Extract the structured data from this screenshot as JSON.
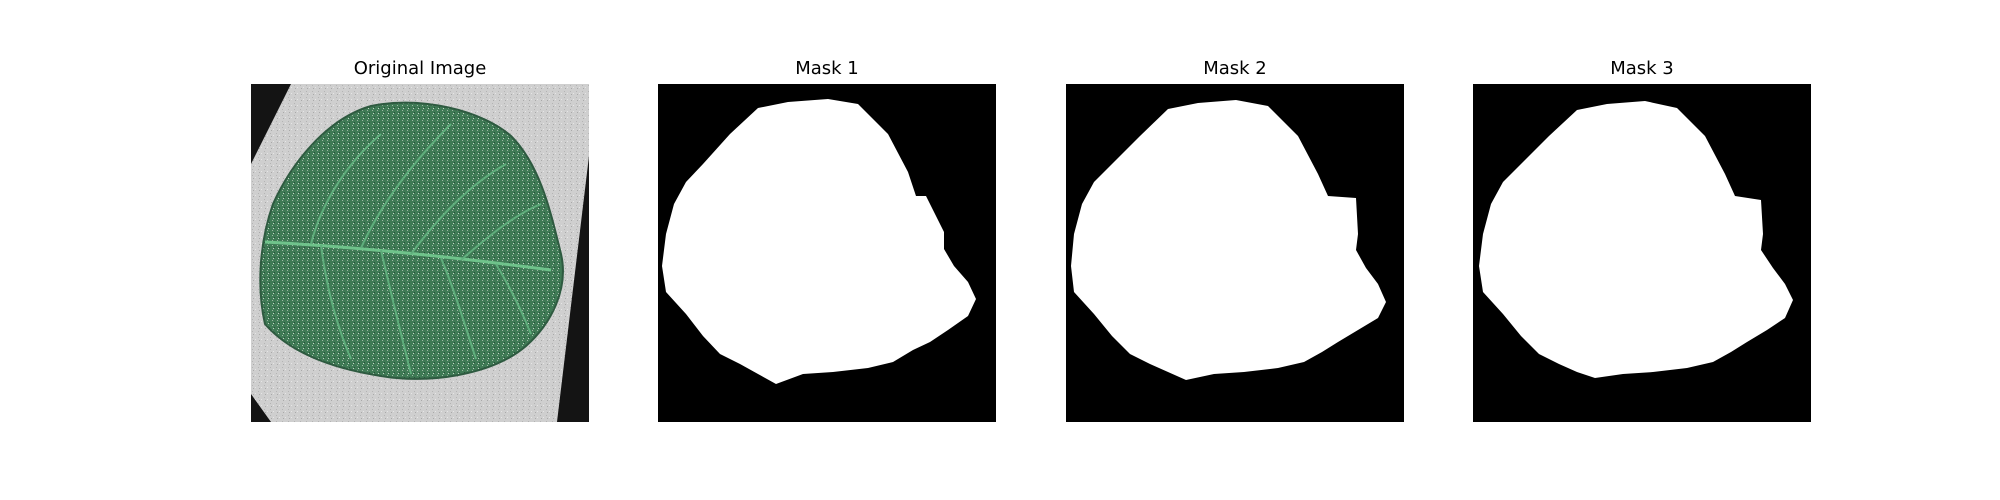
{
  "figure": {
    "panels": [
      {
        "title": "Original Image",
        "kind": "photo"
      },
      {
        "title": "Mask 1",
        "kind": "mask"
      },
      {
        "title": "Mask 2",
        "kind": "mask"
      },
      {
        "title": "Mask 3",
        "kind": "mask"
      }
    ]
  },
  "colors": {
    "background": "#ffffff",
    "mask_background": "#000000",
    "mask_foreground": "#ffffff",
    "leaf": "#3f7a55",
    "leaf_vein": "#6fc38b",
    "paper": "#cfcfcf",
    "photo_background": "#141414"
  }
}
